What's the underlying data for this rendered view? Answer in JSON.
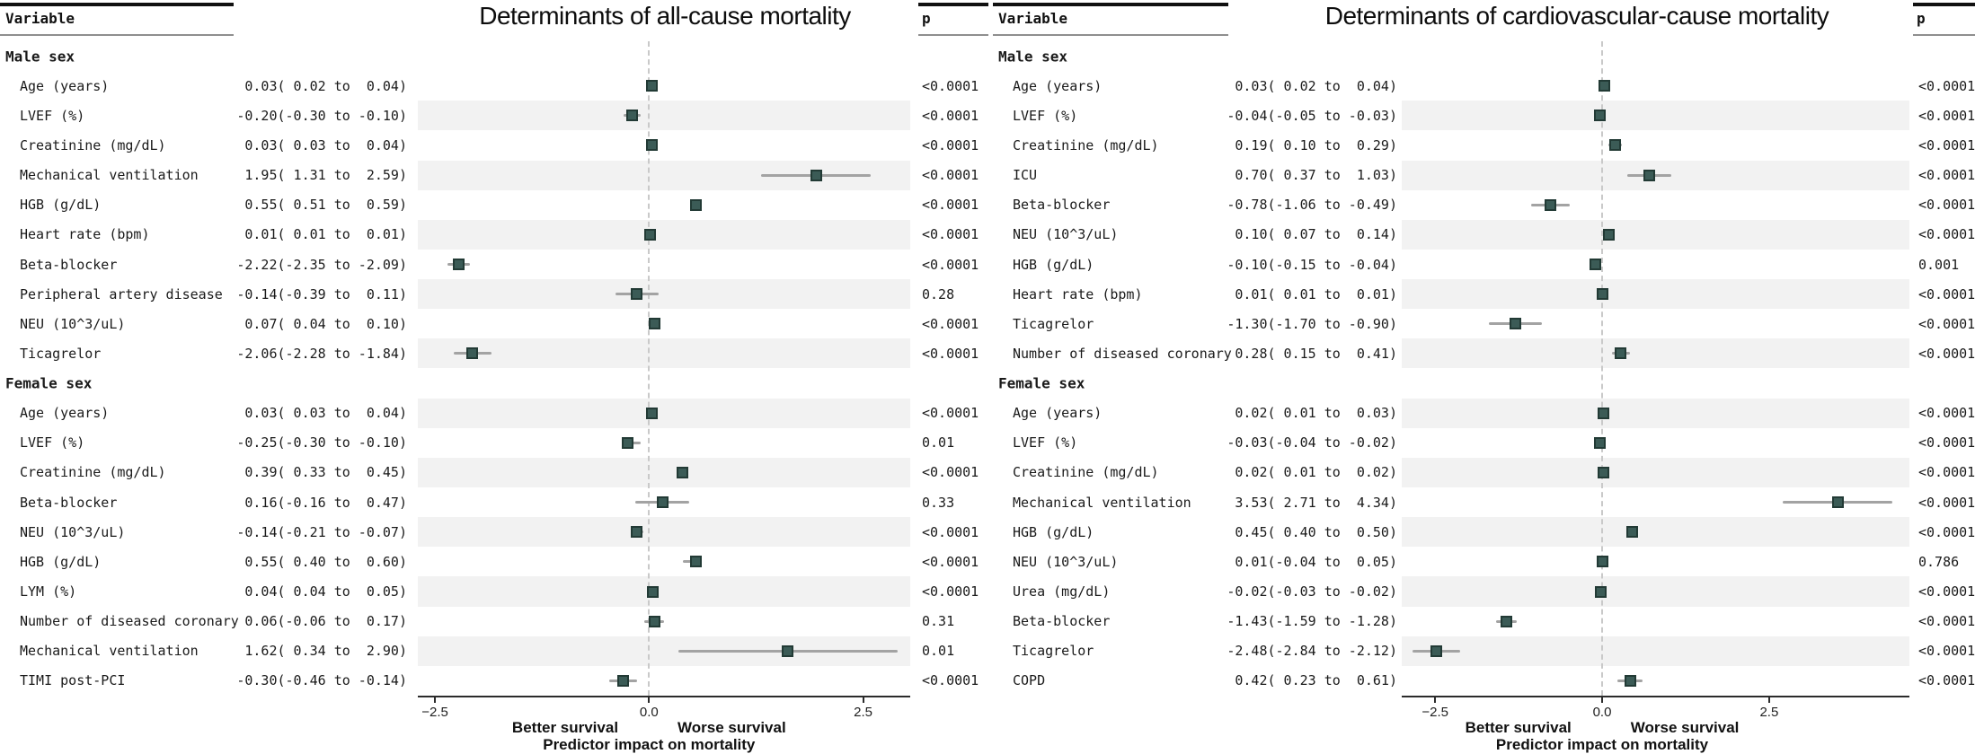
{
  "chart_data": {
    "type": "forest",
    "description": "Two side-by-side forest plots of regression estimates with 95% CI and p-values",
    "charts": [
      {
        "title": "Determinants of all-cause mortality",
        "var_header": "Variable",
        "p_header": "p",
        "better_label": "Better survival",
        "worse_label": "Worse survival",
        "xlabel": "Predictor impact on mortality",
        "xlim": [
          -2.7,
          3.05
        ],
        "xtick_values": [
          -2.5,
          0,
          2.5
        ],
        "xtick_labels": [
          "−2.5",
          "0.0",
          "2.5"
        ],
        "rows": [
          {
            "label": "Male sex",
            "header": true
          },
          {
            "label": "Age (years)",
            "text": " 0.03( 0.02 to  0.04)",
            "est": 0.03,
            "lo": 0.02,
            "hi": 0.04,
            "p": "<0.0001"
          },
          {
            "label": "LVEF (%)",
            "text": "-0.20(-0.30 to -0.10)",
            "est": -0.2,
            "lo": -0.3,
            "hi": -0.1,
            "p": "<0.0001"
          },
          {
            "label": "Creatinine (mg/dL)",
            "text": " 0.03( 0.03 to  0.04)",
            "est": 0.03,
            "lo": 0.03,
            "hi": 0.04,
            "p": "<0.0001"
          },
          {
            "label": "Mechanical ventilation",
            "text": " 1.95( 1.31 to  2.59)",
            "est": 1.95,
            "lo": 1.31,
            "hi": 2.59,
            "p": "<0.0001"
          },
          {
            "label": "HGB (g/dL)",
            "text": " 0.55( 0.51 to  0.59)",
            "est": 0.55,
            "lo": 0.51,
            "hi": 0.59,
            "p": "<0.0001"
          },
          {
            "label": "Heart rate (bpm)",
            "text": " 0.01( 0.01 to  0.01)",
            "est": 0.01,
            "lo": 0.01,
            "hi": 0.01,
            "p": "<0.0001"
          },
          {
            "label": "Beta-blocker",
            "text": "-2.22(-2.35 to -2.09)",
            "est": -2.22,
            "lo": -2.35,
            "hi": -2.09,
            "p": "<0.0001"
          },
          {
            "label": "Peripheral artery disease",
            "text": "-0.14(-0.39 to  0.11)",
            "est": -0.14,
            "lo": -0.39,
            "hi": 0.11,
            "p": "0.28"
          },
          {
            "label": "NEU (10^3/uL)",
            "text": " 0.07( 0.04 to  0.10)",
            "est": 0.07,
            "lo": 0.04,
            "hi": 0.1,
            "p": "<0.0001"
          },
          {
            "label": "Ticagrelor",
            "text": "-2.06(-2.28 to -1.84)",
            "est": -2.06,
            "lo": -2.28,
            "hi": -1.84,
            "p": "<0.0001"
          },
          {
            "label": "Female sex",
            "header": true
          },
          {
            "label": "Age (years)",
            "text": " 0.03( 0.03 to  0.04)",
            "est": 0.03,
            "lo": 0.03,
            "hi": 0.04,
            "p": "<0.0001"
          },
          {
            "label": "LVEF (%)",
            "text": "-0.25(-0.30 to -0.10)",
            "est": -0.25,
            "lo": -0.3,
            "hi": -0.1,
            "p": "0.01"
          },
          {
            "label": "Creatinine (mg/dL)",
            "text": " 0.39( 0.33 to  0.45)",
            "est": 0.39,
            "lo": 0.33,
            "hi": 0.45,
            "p": "<0.0001"
          },
          {
            "label": "Beta-blocker",
            "text": " 0.16(-0.16 to  0.47)",
            "est": 0.16,
            "lo": -0.16,
            "hi": 0.47,
            "p": "0.33"
          },
          {
            "label": "NEU (10^3/uL)",
            "text": "-0.14(-0.21 to -0.07)",
            "est": -0.14,
            "lo": -0.21,
            "hi": -0.07,
            "p": "<0.0001"
          },
          {
            "label": "HGB (g/dL)",
            "text": " 0.55( 0.40 to  0.60)",
            "est": 0.55,
            "lo": 0.4,
            "hi": 0.6,
            "p": "<0.0001"
          },
          {
            "label": "LYM (%)",
            "text": " 0.04( 0.04 to  0.05)",
            "est": 0.04,
            "lo": 0.04,
            "hi": 0.05,
            "p": "<0.0001"
          },
          {
            "label": "Number of diseased coronary",
            "text": " 0.06(-0.06 to  0.17)",
            "est": 0.06,
            "lo": -0.06,
            "hi": 0.17,
            "p": "0.31"
          },
          {
            "label": "Mechanical ventilation",
            "text": " 1.62( 0.34 to  2.90)",
            "est": 1.62,
            "lo": 0.34,
            "hi": 2.9,
            "p": "0.01"
          },
          {
            "label": "TIMI post-PCI",
            "text": "-0.30(-0.46 to -0.14)",
            "est": -0.3,
            "lo": -0.46,
            "hi": -0.14,
            "p": "<0.0001"
          }
        ]
      },
      {
        "title": "Determinants of cardiovascular-cause mortality",
        "var_header": "Variable",
        "p_header": "p",
        "better_label": "Better survival",
        "worse_label": "Worse survival",
        "xlabel": "Predictor impact on mortality",
        "xlim": [
          -3.0,
          4.6
        ],
        "xtick_values": [
          -2.5,
          0,
          2.5
        ],
        "xtick_labels": [
          "−2.5",
          "0.0",
          "2.5"
        ],
        "rows": [
          {
            "label": "Male sex",
            "header": true
          },
          {
            "label": "Age (years)",
            "text": " 0.03( 0.02 to  0.04)",
            "est": 0.03,
            "lo": 0.02,
            "hi": 0.04,
            "p": "<0.0001"
          },
          {
            "label": "LVEF (%)",
            "text": "-0.04(-0.05 to -0.03)",
            "est": -0.04,
            "lo": -0.05,
            "hi": -0.03,
            "p": "<0.0001"
          },
          {
            "label": "Creatinine (mg/dL)",
            "text": " 0.19( 0.10 to  0.29)",
            "est": 0.19,
            "lo": 0.1,
            "hi": 0.29,
            "p": "<0.0001"
          },
          {
            "label": "ICU",
            "text": " 0.70( 0.37 to  1.03)",
            "est": 0.7,
            "lo": 0.37,
            "hi": 1.03,
            "p": "<0.0001"
          },
          {
            "label": "Beta-blocker",
            "text": "-0.78(-1.06 to -0.49)",
            "est": -0.78,
            "lo": -1.06,
            "hi": -0.49,
            "p": "<0.0001"
          },
          {
            "label": "NEU (10^3/uL)",
            "text": " 0.10( 0.07 to  0.14)",
            "est": 0.1,
            "lo": 0.07,
            "hi": 0.14,
            "p": "<0.0001"
          },
          {
            "label": "HGB (g/dL)",
            "text": "-0.10(-0.15 to -0.04)",
            "est": -0.1,
            "lo": -0.15,
            "hi": -0.04,
            "p": "0.001"
          },
          {
            "label": "Heart rate (bpm)",
            "text": " 0.01( 0.01 to  0.01)",
            "est": 0.01,
            "lo": 0.01,
            "hi": 0.01,
            "p": "<0.0001"
          },
          {
            "label": "Ticagrelor",
            "text": "-1.30(-1.70 to -0.90)",
            "est": -1.3,
            "lo": -1.7,
            "hi": -0.9,
            "p": "<0.0001"
          },
          {
            "label": "Number of diseased coronary",
            "text": " 0.28( 0.15 to  0.41)",
            "est": 0.28,
            "lo": 0.15,
            "hi": 0.41,
            "p": "<0.0001"
          },
          {
            "label": "Female sex",
            "header": true
          },
          {
            "label": "Age (years)",
            "text": " 0.02( 0.01 to  0.03)",
            "est": 0.02,
            "lo": 0.01,
            "hi": 0.03,
            "p": "<0.0001"
          },
          {
            "label": "LVEF (%)",
            "text": "-0.03(-0.04 to -0.02)",
            "est": -0.03,
            "lo": -0.04,
            "hi": -0.02,
            "p": "<0.0001"
          },
          {
            "label": "Creatinine (mg/dL)",
            "text": " 0.02( 0.01 to  0.02)",
            "est": 0.02,
            "lo": 0.01,
            "hi": 0.02,
            "p": "<0.0001"
          },
          {
            "label": "Mechanical ventilation",
            "text": " 3.53( 2.71 to  4.34)",
            "est": 3.53,
            "lo": 2.71,
            "hi": 4.34,
            "p": "<0.0001"
          },
          {
            "label": "HGB (g/dL)",
            "text": " 0.45( 0.40 to  0.50)",
            "est": 0.45,
            "lo": 0.4,
            "hi": 0.5,
            "p": "<0.0001"
          },
          {
            "label": "NEU (10^3/uL)",
            "text": " 0.01(-0.04 to  0.05)",
            "est": 0.01,
            "lo": -0.04,
            "hi": 0.05,
            "p": "0.786"
          },
          {
            "label": "Urea (mg/dL)",
            "text": "-0.02(-0.03 to -0.02)",
            "est": -0.02,
            "lo": -0.03,
            "hi": -0.02,
            "p": "<0.0001"
          },
          {
            "label": "Beta-blocker",
            "text": "-1.43(-1.59 to -1.28)",
            "est": -1.43,
            "lo": -1.59,
            "hi": -1.28,
            "p": "<0.0001"
          },
          {
            "label": "Ticagrelor",
            "text": "-2.48(-2.84 to -2.12)",
            "est": -2.48,
            "lo": -2.84,
            "hi": -2.12,
            "p": "<0.0001"
          },
          {
            "label": "COPD",
            "text": " 0.42( 0.23 to  0.61)",
            "est": 0.42,
            "lo": 0.23,
            "hi": 0.61,
            "p": "<0.0001"
          }
        ]
      }
    ],
    "colors": {
      "marker_fill": "#3b5b56",
      "marker_border": "#223a35",
      "ci_line": "#a3a3a3",
      "row_stripe": "#f2f2f2",
      "zero_line": "#c9c9c9"
    }
  }
}
